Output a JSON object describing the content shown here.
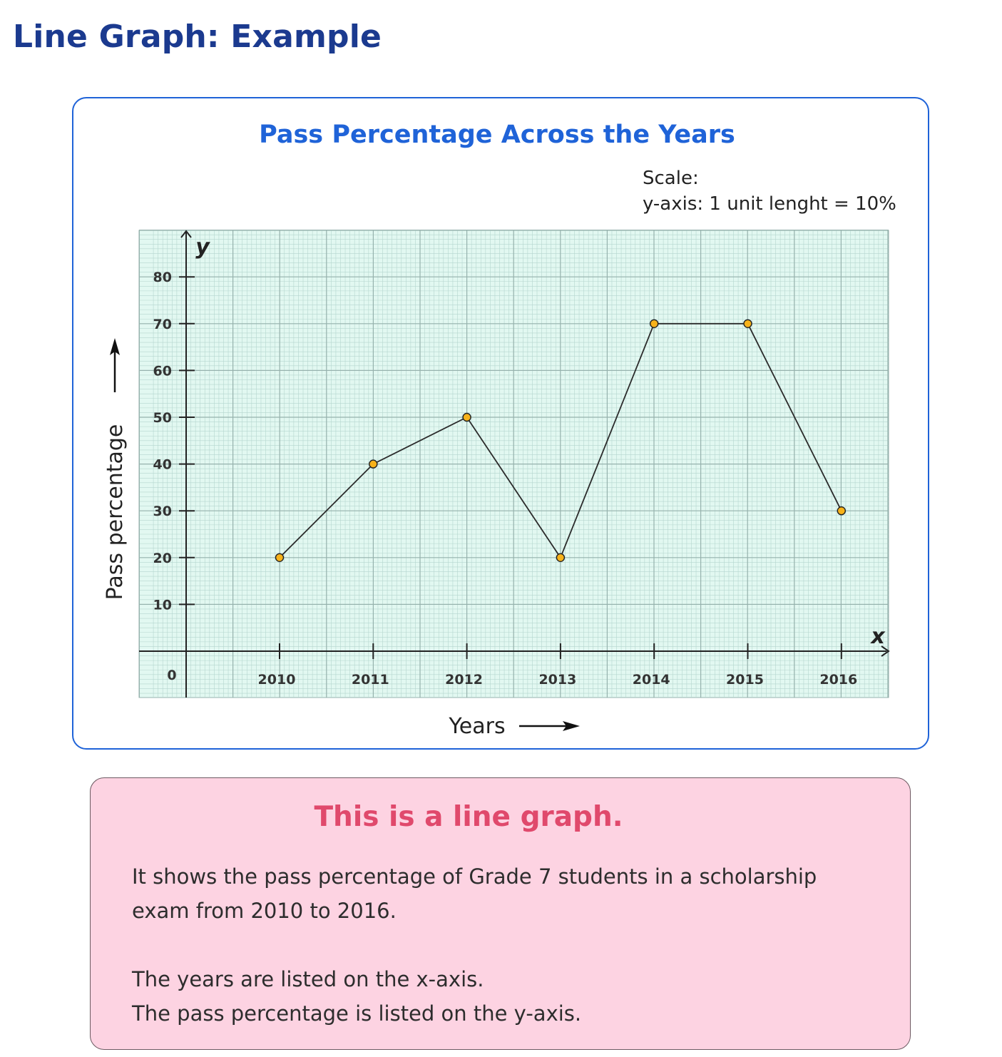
{
  "page": {
    "title": "Line Graph: Example"
  },
  "chart_data": {
    "type": "line",
    "title": "Pass Percentage Across the Years",
    "scale_label": "Scale:",
    "scale_text": "y-axis: 1 unit lenght = 10%",
    "xlabel": "Years",
    "ylabel": "Pass percentage",
    "x_axis_symbol": "x",
    "y_axis_symbol": "y",
    "origin_label": "0",
    "categories": [
      "2010",
      "2011",
      "2012",
      "2013",
      "2014",
      "2015",
      "2016"
    ],
    "y_ticks": [
      "10",
      "20",
      "30",
      "40",
      "50",
      "60",
      "70",
      "80"
    ],
    "series": [
      {
        "values": [
          20,
          40,
          50,
          20,
          70,
          70,
          30
        ]
      }
    ],
    "ylim": [
      0,
      80
    ],
    "grid": true,
    "colors": {
      "grid_bg": "#e2f8f1",
      "grid_line": "#b5d6cf",
      "grid_major": "#96b2ad",
      "line": "#2b2b2b",
      "marker": "#f7b21a",
      "title": "#1f63d8"
    }
  },
  "info": {
    "heading": "This is a line graph.",
    "lines": [
      "It shows the pass percentage of Grade 7 students in a scholarship",
      "exam from 2010 to 2016.",
      "The years are listed on the x-axis.",
      "The pass percentage is listed on the y-axis."
    ]
  }
}
